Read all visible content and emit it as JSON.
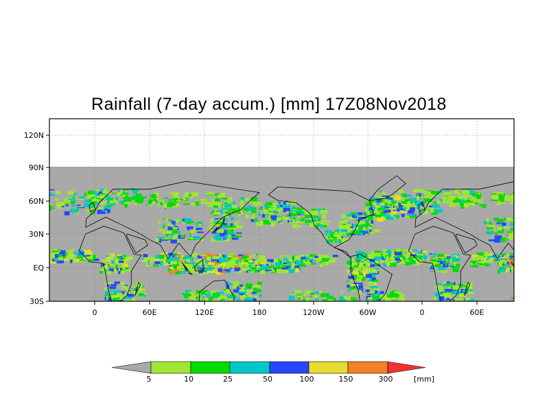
{
  "title": "Rainfall (7-day accum.) [mm] 17Z08Nov2018",
  "map": {
    "lat_labels": [
      "120N",
      "90N",
      "60N",
      "30N",
      "EQ",
      "30S"
    ],
    "lon_labels": [
      "0",
      "60E",
      "120E",
      "180",
      "120W",
      "60W",
      "0",
      "60E"
    ],
    "background_color": "#a9a9a9"
  },
  "legend": {
    "values": [
      "5",
      "10",
      "25",
      "50",
      "100",
      "150",
      "300"
    ],
    "unit": "[mm]",
    "colors": [
      "#a9a9a9",
      "#a0e632",
      "#00dc00",
      "#00c8c8",
      "#2846ff",
      "#e6dc32",
      "#f08228",
      "#f03232"
    ]
  }
}
